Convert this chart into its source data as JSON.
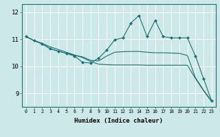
{
  "xlabel": "Humidex (Indice chaleur)",
  "xlim": [
    -0.5,
    23.5
  ],
  "ylim": [
    8.5,
    12.3
  ],
  "yticks": [
    9,
    10,
    11,
    12
  ],
  "xticks": [
    0,
    1,
    2,
    3,
    4,
    5,
    6,
    7,
    8,
    9,
    10,
    11,
    12,
    13,
    14,
    15,
    16,
    17,
    18,
    19,
    20,
    21,
    22,
    23
  ],
  "bg_color": "#cce8e8",
  "grid_color": "#ffffff",
  "line_color": "#1a7070",
  "line1_y": [
    11.1,
    10.95,
    10.85,
    10.72,
    10.62,
    10.52,
    10.42,
    10.32,
    10.18,
    10.08,
    10.06,
    10.05,
    10.05,
    10.05,
    10.05,
    10.04,
    10.04,
    10.04,
    10.04,
    10.04,
    10.04,
    9.55,
    9.1,
    8.7
  ],
  "line2_y": [
    11.1,
    10.95,
    10.83,
    10.65,
    10.56,
    10.48,
    10.41,
    10.35,
    10.22,
    10.2,
    10.38,
    10.52,
    10.54,
    10.55,
    10.55,
    10.52,
    10.5,
    10.5,
    10.49,
    10.48,
    10.4,
    9.58,
    9.12,
    8.72
  ],
  "line3_y": [
    11.1,
    10.95,
    10.83,
    10.65,
    10.56,
    10.48,
    10.38,
    10.15,
    10.12,
    10.3,
    10.6,
    10.98,
    11.05,
    11.6,
    11.88,
    11.1,
    11.7,
    11.1,
    11.05,
    11.05,
    11.05,
    10.38,
    9.55,
    8.72
  ]
}
